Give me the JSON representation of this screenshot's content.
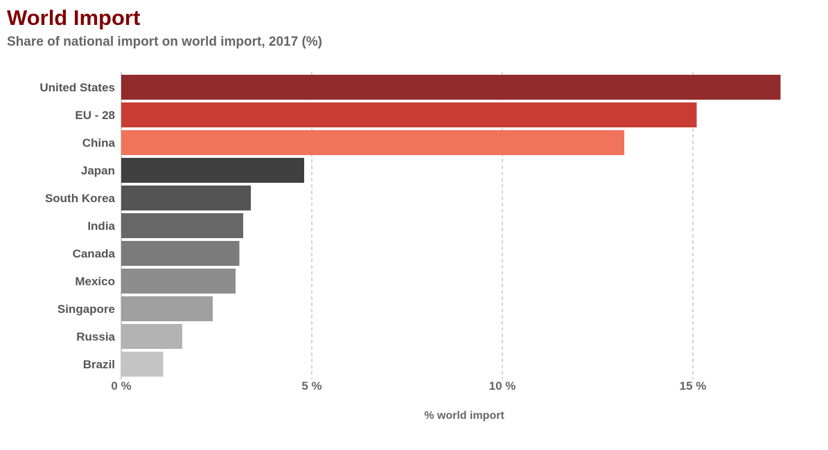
{
  "title": "World Import",
  "subtitle": "Share of national import on world import, 2017 (%)",
  "chart_data": {
    "type": "bar",
    "orientation": "horizontal",
    "title": "World Import",
    "subtitle": "Share of national import on world import, 2017 (%)",
    "xlabel": "% world import",
    "ylabel": "",
    "categories": [
      "United States",
      "EU - 28",
      "China",
      "Japan",
      "South Korea",
      "India",
      "Canada",
      "Mexico",
      "Singapore",
      "Russia",
      "Brazil"
    ],
    "values": [
      17.3,
      15.1,
      13.2,
      4.8,
      3.4,
      3.2,
      3.1,
      3.0,
      2.4,
      1.6,
      1.1
    ],
    "colors": [
      "#922b2b",
      "#c93c34",
      "#f0735c",
      "#404040",
      "#545454",
      "#676767",
      "#7b7b7b",
      "#8d8d8d",
      "#a0a0a0",
      "#b3b3b3",
      "#c4c4c4"
    ],
    "xlim": [
      0,
      17.5
    ],
    "xticks": [
      0,
      5,
      10,
      15
    ],
    "xtick_labels": [
      "0 %",
      "5 %",
      "10 %",
      "15 %"
    ],
    "grid": "vertical dashed",
    "legend": "none"
  }
}
